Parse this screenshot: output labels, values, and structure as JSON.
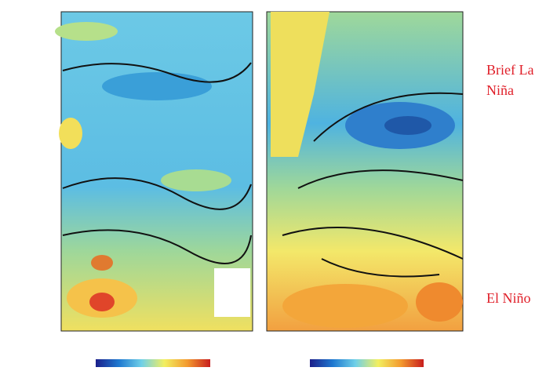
{
  "chart_data": {
    "type": "contour",
    "annotations": [
      "Brief La Niña",
      "El Niño"
    ]
  }
}
